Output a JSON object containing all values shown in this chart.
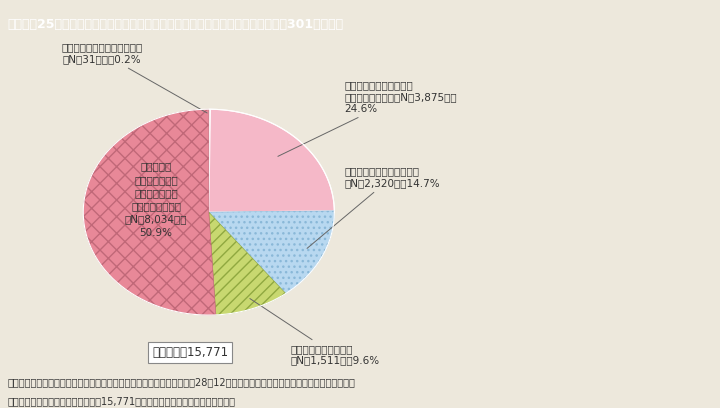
{
  "title": "Ｉ－特－25図　厚生労働省「女性の活躍推進企業データベース」への登録状況（301人以上）",
  "slices_ordered": [
    {
      "label_short": "not_submitted",
      "value": 0.2,
      "color": "#F8F0F0",
      "hatch": null,
      "hatch_color": null
    },
    {
      "label_short": "both",
      "value": 24.6,
      "color": "#F5B8C8",
      "hatch": null,
      "hatch_color": null
    },
    {
      "label_short": "action_only",
      "value": 14.7,
      "color": "#B8D8F0",
      "hatch": "...",
      "hatch_color": "#8AB8D8"
    },
    {
      "label_short": "info_only",
      "value": 9.6,
      "color": "#C8D870",
      "hatch": "///",
      "hatch_color": "#90A840"
    },
    {
      "label_short": "not_registered",
      "value": 50.9,
      "color": "#E88898",
      "hatch": "xx",
      "hatch_color": "#C06878"
    }
  ],
  "label_not_submitted": "行動計画を届け出ていない，\n（N＝31），　0.2%",
  "label_both": "「行動計画の公表」かつ\n「情報の公表」，（N＝3,875），\n24.6%",
  "label_action_only": "「行動計画の公表」のみ，\n（N＝2,320），14.7%",
  "label_info_only": "「情報の公表」のみ，\n（N＝1,511），9.6%",
  "label_not_registered": "行動計画を\n届け出ているが\nデータベースに\n登録していない，\n（N＝8,034），\n50.9%",
  "total_label": "事業主数：15,771",
  "background_color": "#EDE8DC",
  "title_bg": "#40B0C0",
  "title_color": "white",
  "footer_line1": "（備考）　１．厚生労働省「女性の活躍推進企業データベース」（平成28年12月末現在）より内閣府男女共同参画局にて作成。",
  "footer_line2": "　　　　　２．義務対象事業主数（15,771）に占める事業主の割合と数を示す。",
  "text_color": "#333333"
}
